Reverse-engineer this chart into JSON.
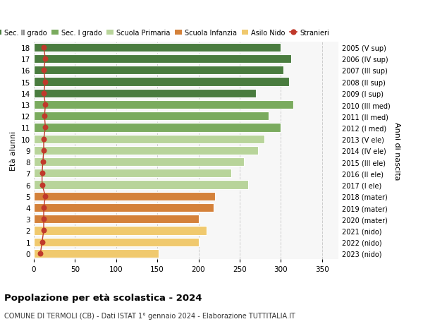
{
  "ages": [
    18,
    17,
    16,
    15,
    14,
    13,
    12,
    11,
    10,
    9,
    8,
    7,
    6,
    5,
    4,
    3,
    2,
    1,
    0
  ],
  "years": [
    "2005 (V sup)",
    "2006 (IV sup)",
    "2007 (III sup)",
    "2008 (II sup)",
    "2009 (I sup)",
    "2010 (III med)",
    "2011 (II med)",
    "2012 (I med)",
    "2013 (V ele)",
    "2014 (IV ele)",
    "2015 (III ele)",
    "2016 (II ele)",
    "2017 (I ele)",
    "2018 (mater)",
    "2019 (mater)",
    "2020 (mater)",
    "2021 (nido)",
    "2022 (nido)",
    "2023 (nido)"
  ],
  "values": [
    300,
    313,
    303,
    310,
    270,
    315,
    285,
    300,
    280,
    272,
    255,
    240,
    260,
    220,
    218,
    200,
    210,
    200,
    152
  ],
  "stranieri": [
    12,
    14,
    12,
    14,
    12,
    14,
    13,
    14,
    12,
    12,
    11,
    10,
    10,
    14,
    12,
    12,
    12,
    10,
    8
  ],
  "bar_colors": [
    "#4a7c3f",
    "#4a7c3f",
    "#4a7c3f",
    "#4a7c3f",
    "#4a7c3f",
    "#7aab5e",
    "#7aab5e",
    "#7aab5e",
    "#b8d49a",
    "#b8d49a",
    "#b8d49a",
    "#b8d49a",
    "#b8d49a",
    "#d4813a",
    "#d4813a",
    "#d4813a",
    "#f0c96e",
    "#f0c96e",
    "#f0c96e"
  ],
  "legend_labels": [
    "Sec. II grado",
    "Sec. I grado",
    "Scuola Primaria",
    "Scuola Infanzia",
    "Asilo Nido",
    "Stranieri"
  ],
  "legend_colors": [
    "#4a7c3f",
    "#7aab5e",
    "#b8d49a",
    "#d4813a",
    "#f0c96e",
    "#c0392b"
  ],
  "stranieri_color": "#c0392b",
  "title": "Popolazione per età scolastica - 2024",
  "subtitle": "COMUNE DI TERMOLI (CB) - Dati ISTAT 1° gennaio 2024 - Elaborazione TUTTITALIA.IT",
  "ylabel": "Età alunni",
  "ylabel2": "Anni di nascita",
  "xlim": [
    0,
    370
  ],
  "ylim": [
    -0.5,
    18.5
  ],
  "xticks": [
    0,
    50,
    100,
    150,
    200,
    250,
    300,
    350
  ],
  "bar_height": 0.75,
  "grid_color": "#cccccc",
  "ax_bgcolor": "#f7f7f7",
  "fig_bgcolor": "#ffffff"
}
